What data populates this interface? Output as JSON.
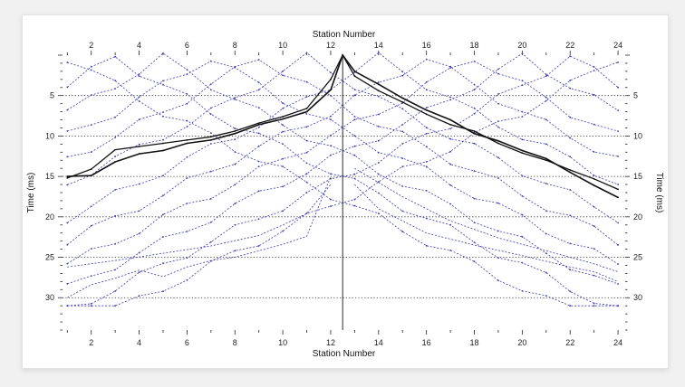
{
  "chart_data": {
    "type": "line",
    "xlabel_top": "Station Number",
    "xlabel_bottom": "Station Number",
    "ylabel_left": "Time (ms)",
    "ylabel_right": "Time (ms)",
    "xlim": [
      0.8,
      24.3
    ],
    "ylim": [
      0,
      34
    ],
    "y_inverted": true,
    "x_ticks": [
      2,
      4,
      6,
      8,
      10,
      12,
      14,
      16,
      18,
      20,
      22,
      24
    ],
    "y_ticks": [
      5,
      10,
      15,
      20,
      25,
      30
    ],
    "grid_y_dotted": [
      5,
      10,
      15,
      20,
      25,
      30
    ],
    "source_line_x": 12.5,
    "highlighted_series": [
      {
        "name": "",
        "x": [
          1,
          2,
          3,
          4,
          5,
          6,
          7,
          8,
          9,
          10,
          11,
          12,
          12.5,
          13,
          14,
          15,
          16,
          17,
          18,
          19,
          20,
          21,
          22,
          23,
          24
        ],
        "y": [
          15.2,
          14.1,
          11.7,
          11.3,
          10.9,
          10.5,
          10.1,
          9.4,
          8.4,
          7.6,
          6.6,
          3.0,
          0.0,
          2.6,
          4.4,
          5.8,
          7.3,
          8.6,
          9.4,
          10.9,
          12.1,
          13.0,
          14.2,
          15.3,
          16.6
        ]
      },
      {
        "name": "",
        "x": [
          1,
          2,
          3,
          4,
          5,
          6,
          7,
          8,
          9,
          10,
          11,
          12,
          12.5,
          13,
          14,
          15,
          16,
          17,
          18,
          19,
          20,
          21,
          22,
          23,
          24
        ],
        "y": [
          15.0,
          14.9,
          13.2,
          12.2,
          11.8,
          10.9,
          10.5,
          9.7,
          8.6,
          7.9,
          7.0,
          4.3,
          0.0,
          2.0,
          3.6,
          5.3,
          6.8,
          8.0,
          9.7,
          10.6,
          11.8,
          12.8,
          14.5,
          16.1,
          17.6
        ]
      }
    ],
    "background_series_color": "#3b3bb0",
    "highlighted_series_color": "#111111"
  }
}
